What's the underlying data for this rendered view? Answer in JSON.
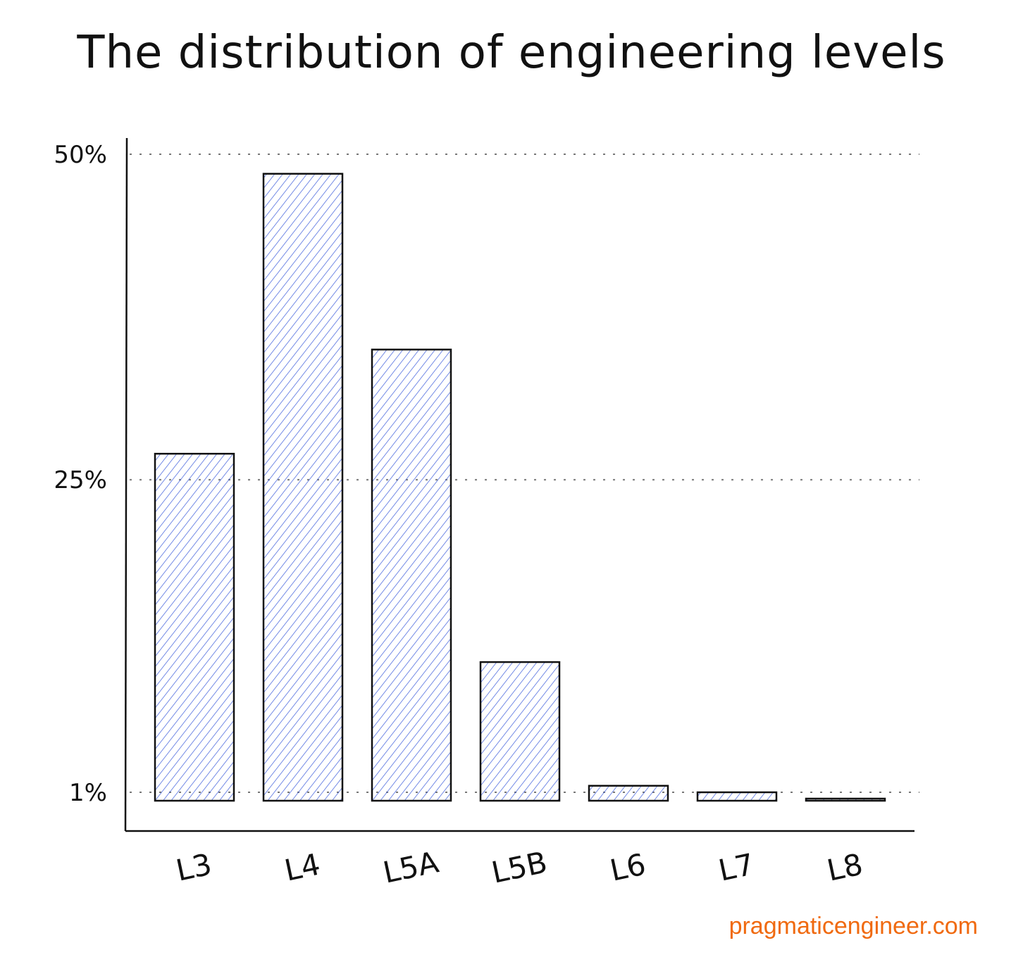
{
  "chart_data": {
    "type": "bar",
    "title": "The distribution of engineering levels",
    "categories": [
      "L3",
      "L4",
      "L5A",
      "L5B",
      "L6",
      "L7",
      "L8"
    ],
    "values": [
      27,
      48.5,
      35,
      11,
      1.5,
      1,
      0.2
    ],
    "y_ticks": [
      {
        "value": 50,
        "label": "50%"
      },
      {
        "value": 25,
        "label": "25%"
      },
      {
        "value": 1,
        "label": "1%"
      }
    ],
    "ylim": [
      0,
      50
    ],
    "grid": "dotted horizontal lines at ticks",
    "bar_fill": "#3b5bdb",
    "bar_stroke": "#111111"
  },
  "credit": "pragmaticengineer.com"
}
